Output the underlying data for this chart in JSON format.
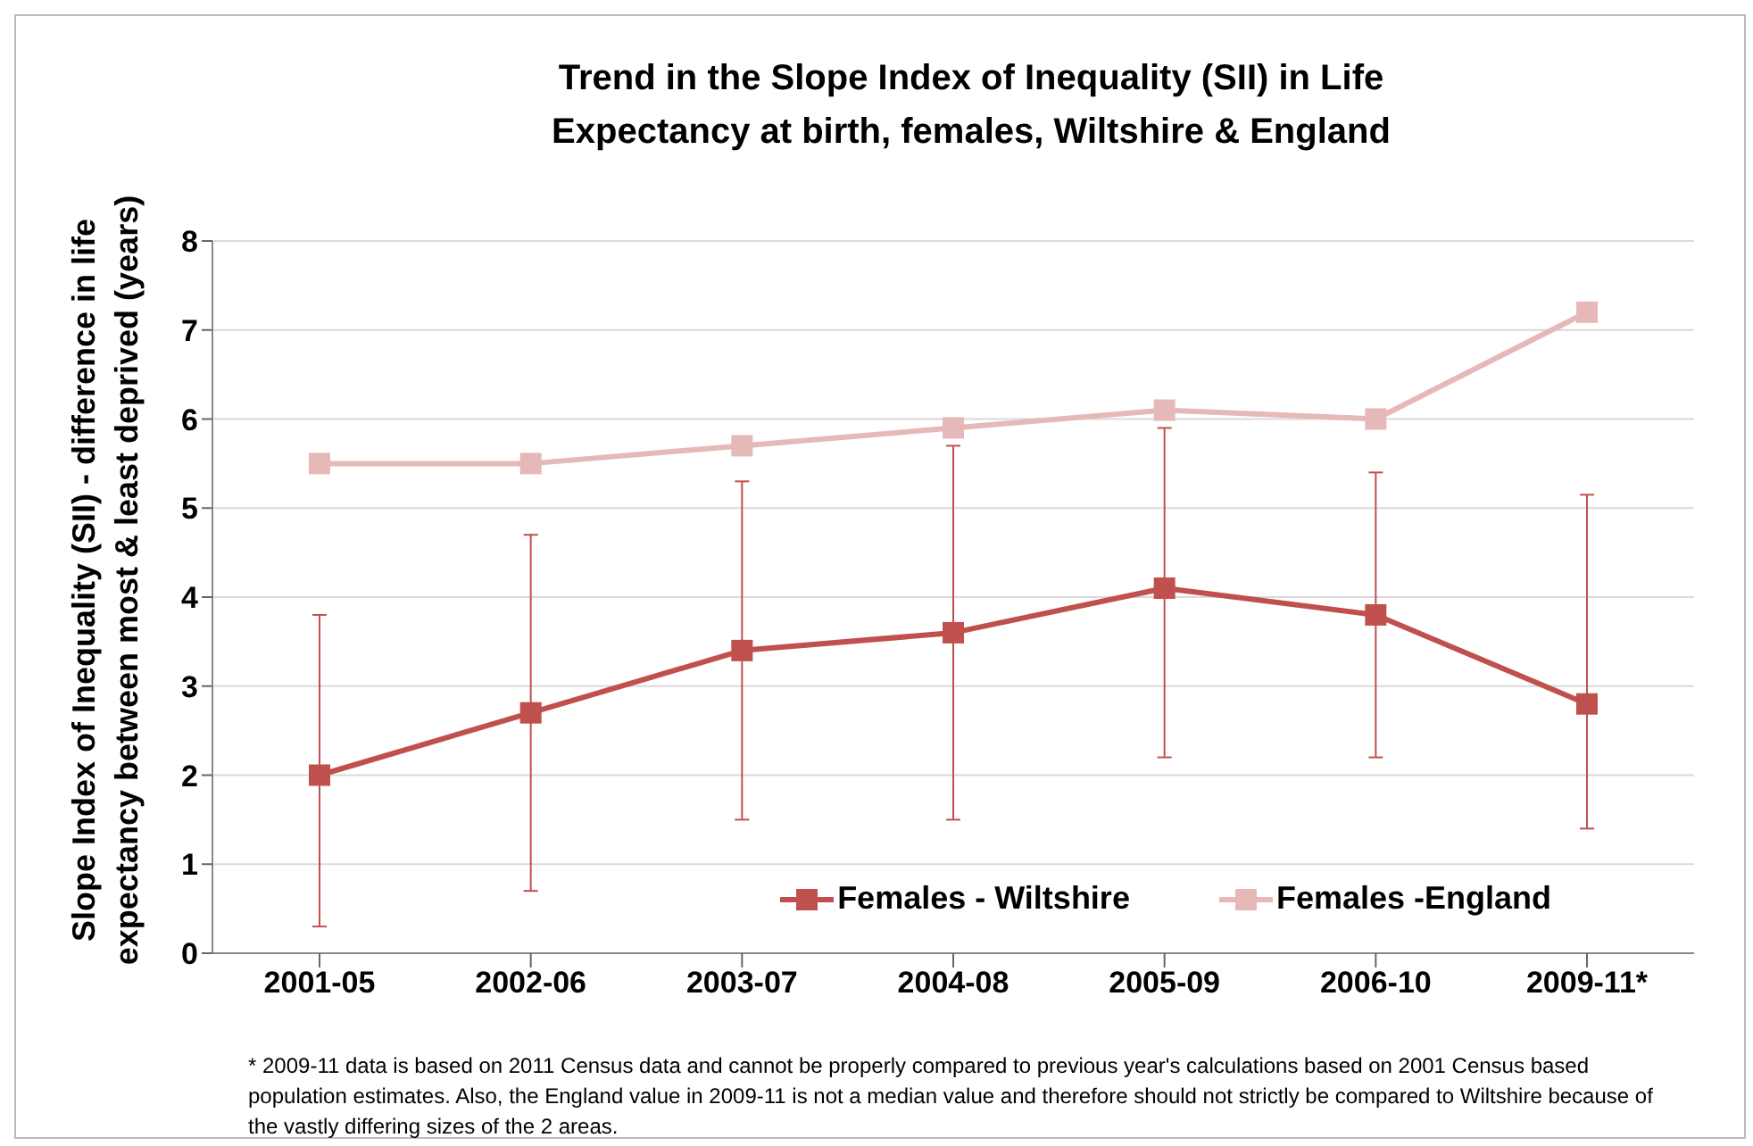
{
  "chart_data": {
    "type": "line",
    "title": "Trend in the Slope Index of Inequality (SII) in Life Expectancy at birth, females, Wiltshire & England",
    "ylabel": "Slope Index of Inequality (SII) - difference in life expectancy between most & least deprived (years)",
    "categories": [
      "2001-05",
      "2002-06",
      "2003-07",
      "2004-08",
      "2005-09",
      "2006-10",
      "2009-11*"
    ],
    "series": [
      {
        "name": "Females - Wiltshire",
        "color": "#c0504d",
        "values": [
          2.0,
          2.7,
          3.4,
          3.6,
          4.1,
          3.8,
          2.8
        ],
        "errors": [
          [
            0.3,
            3.8
          ],
          [
            0.7,
            4.7
          ],
          [
            1.5,
            5.3
          ],
          [
            1.5,
            5.7
          ],
          [
            2.2,
            5.9
          ],
          [
            2.2,
            5.4
          ],
          [
            1.4,
            5.15
          ]
        ]
      },
      {
        "name": "Females -England",
        "color": "#e6b9b8",
        "values": [
          5.5,
          5.5,
          5.7,
          5.9,
          6.1,
          6.0,
          7.2
        ]
      }
    ],
    "ylim": [
      0,
      8
    ],
    "yticks": [
      0,
      1,
      2,
      3,
      4,
      5,
      6,
      7,
      8
    ],
    "grid": "y",
    "legend": "bottom right",
    "marker": "square",
    "line_style": "solid",
    "annotations": [
      "* 2009-11 data is based on 2011 Census data and cannot be properly compared to previous year's calculations  based on 2001 Census based population estimates.  Also, the England value in 2009-11 is not a median value and therefore should not strictly be compared to Wiltshire because of the vastly differing sizes of the 2 areas."
    ]
  }
}
